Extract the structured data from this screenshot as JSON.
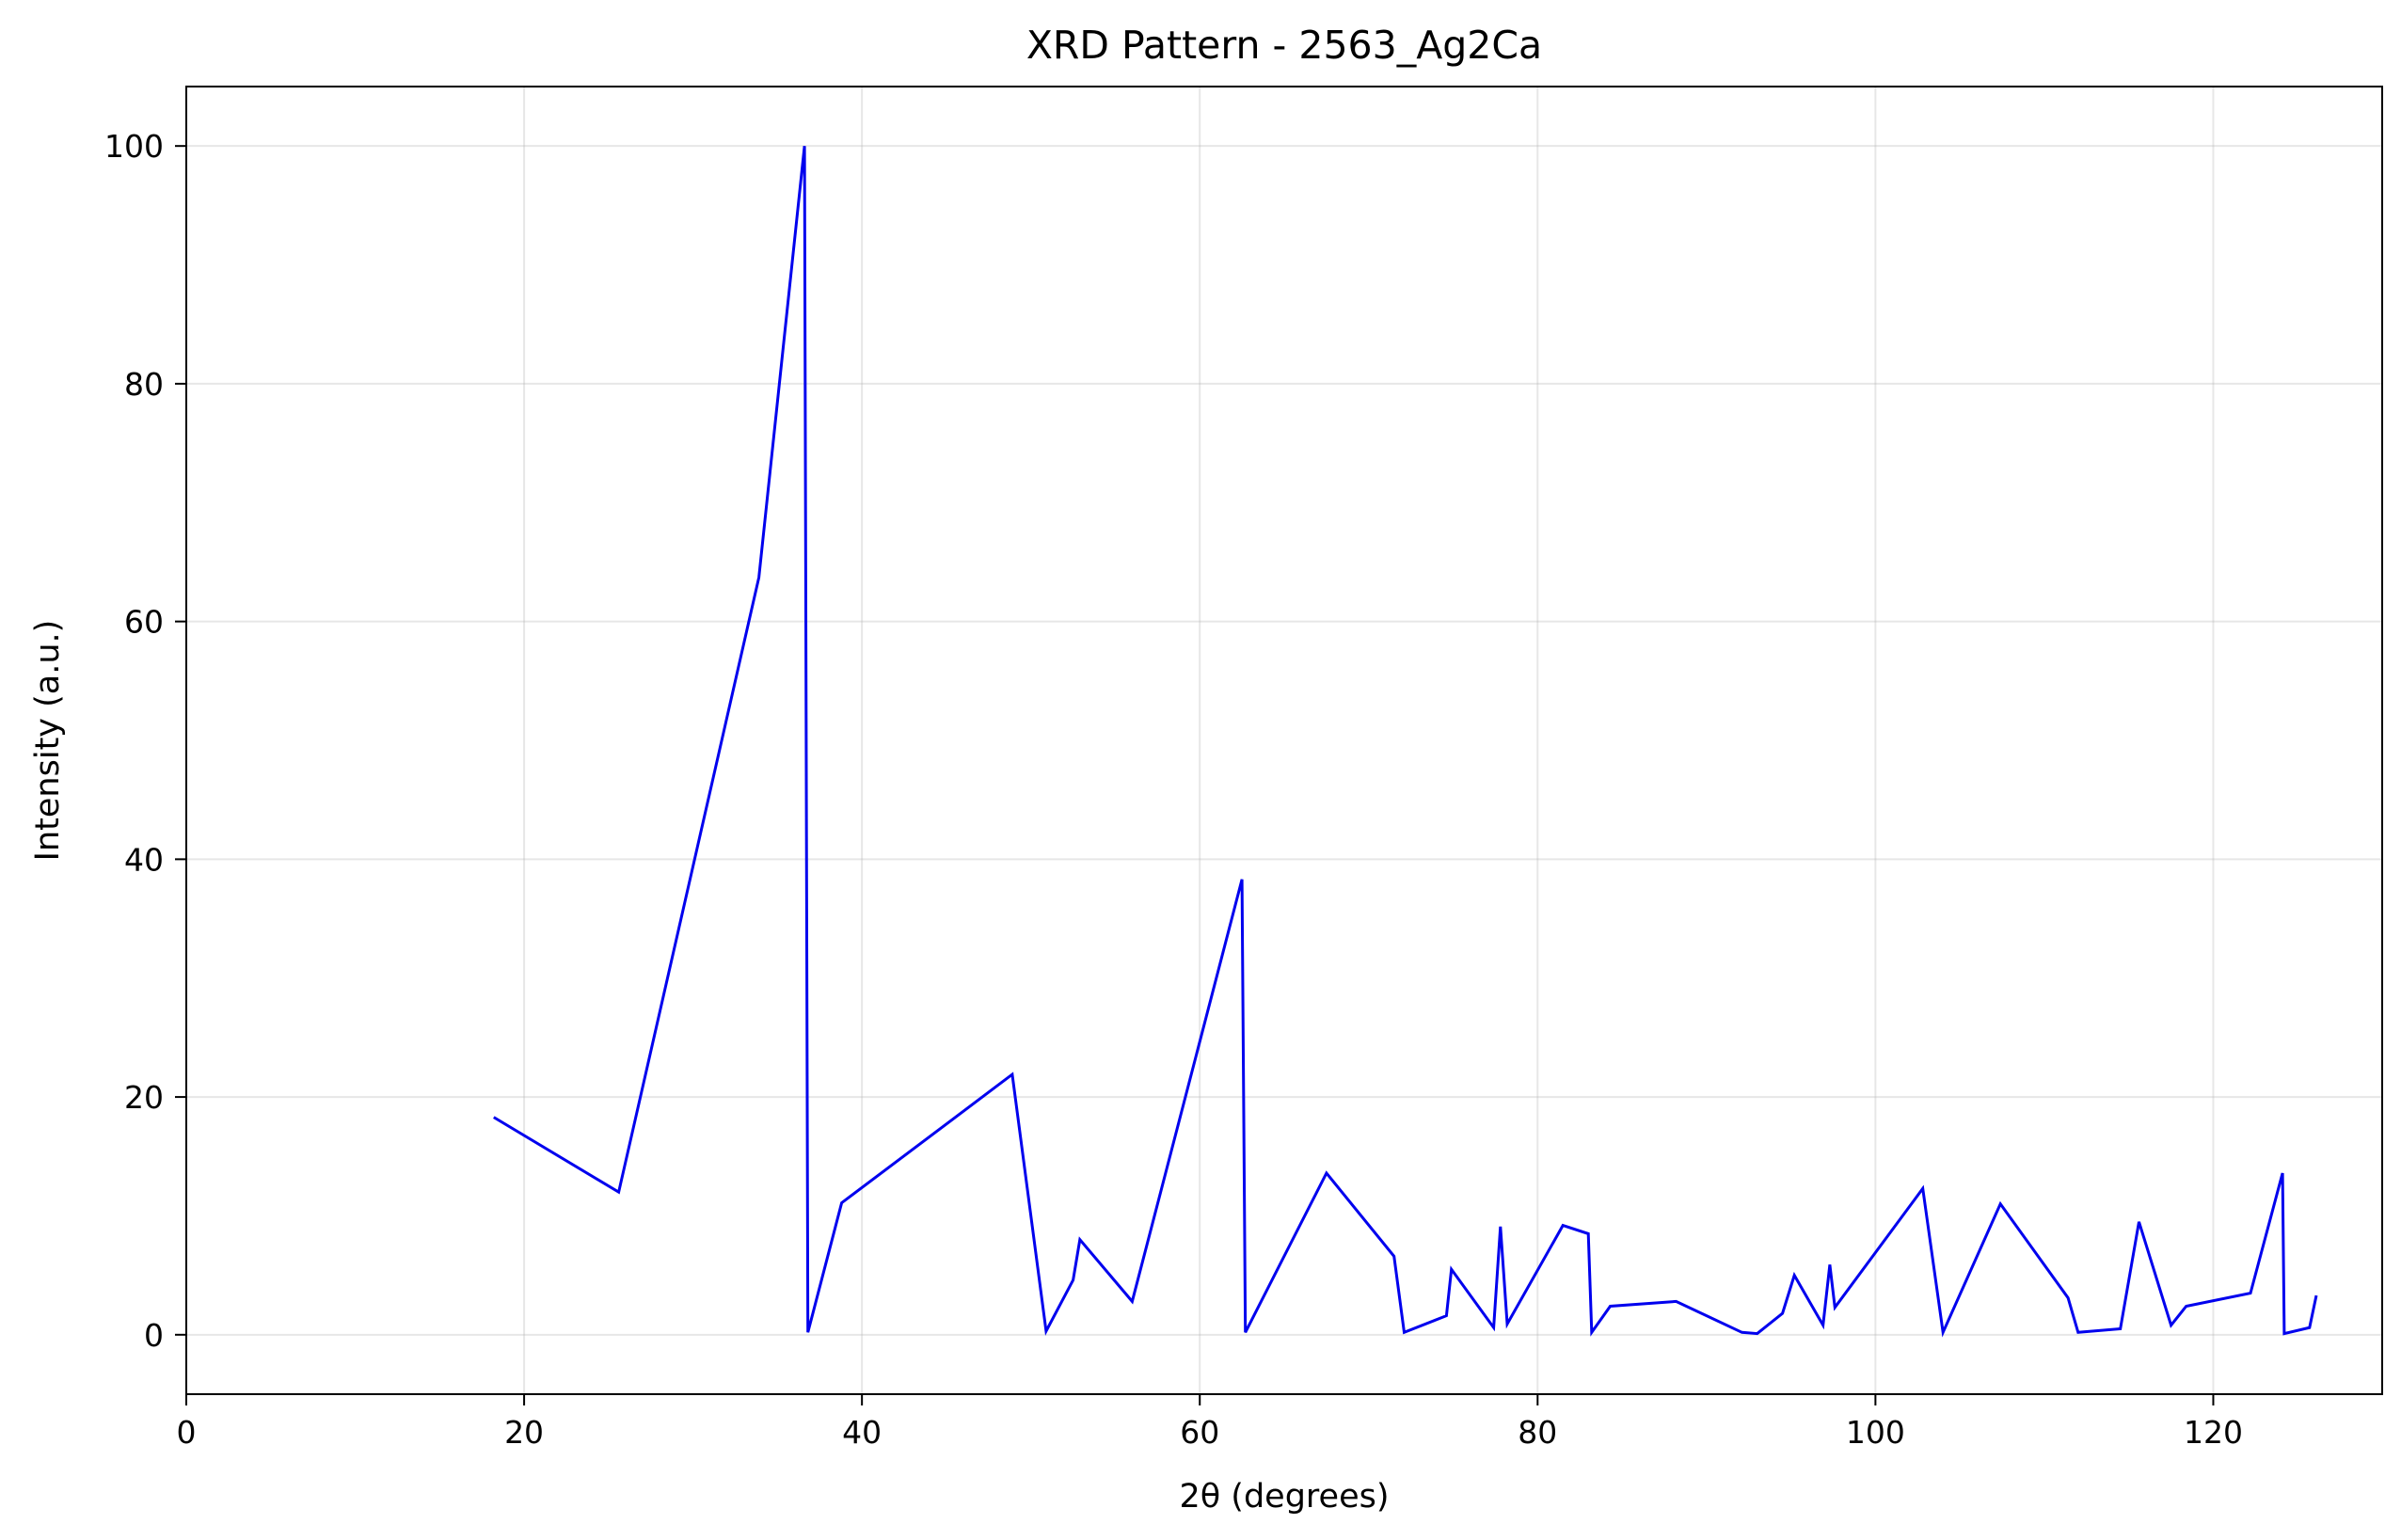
{
  "chart_data": {
    "type": "line",
    "title": "XRD Pattern - 2563_Ag2Ca",
    "xlabel": "2θ (degrees)",
    "ylabel": "Intensity (a.u.)",
    "xlim": [
      0,
      130
    ],
    "ylim": [
      -5,
      105
    ],
    "xticks": [
      0,
      20,
      40,
      60,
      80,
      100,
      120
    ],
    "yticks": [
      0,
      20,
      40,
      60,
      80,
      100
    ],
    "grid": true,
    "line_color": "#0000ee",
    "x": [
      18.2,
      25.6,
      33.9,
      36.6,
      36.8,
      38.8,
      48.9,
      50.9,
      52.5,
      52.9,
      56.0,
      62.5,
      62.7,
      67.5,
      71.5,
      72.1,
      74.6,
      74.9,
      77.4,
      77.8,
      78.2,
      81.5,
      83.0,
      83.2,
      84.3,
      88.2,
      92.1,
      93.0,
      94.5,
      95.2,
      96.9,
      97.3,
      97.6,
      102.8,
      104.0,
      107.4,
      111.4,
      112.0,
      114.5,
      115.6,
      117.5,
      118.4,
      122.2,
      124.1,
      124.2,
      125.7,
      126.1
    ],
    "y": [
      18.3,
      12.0,
      63.7,
      100.0,
      0.2,
      11.1,
      21.9,
      0.3,
      4.6,
      8.0,
      2.8,
      38.3,
      0.2,
      13.6,
      6.6,
      0.2,
      1.6,
      5.5,
      0.6,
      9.1,
      0.9,
      9.2,
      8.5,
      0.2,
      2.4,
      2.8,
      0.2,
      0.1,
      1.8,
      5.0,
      0.8,
      5.9,
      2.3,
      12.3,
      0.2,
      11.0,
      3.1,
      0.2,
      0.5,
      9.5,
      0.8,
      2.4,
      3.5,
      13.6,
      0.1,
      0.6,
      3.3
    ]
  }
}
